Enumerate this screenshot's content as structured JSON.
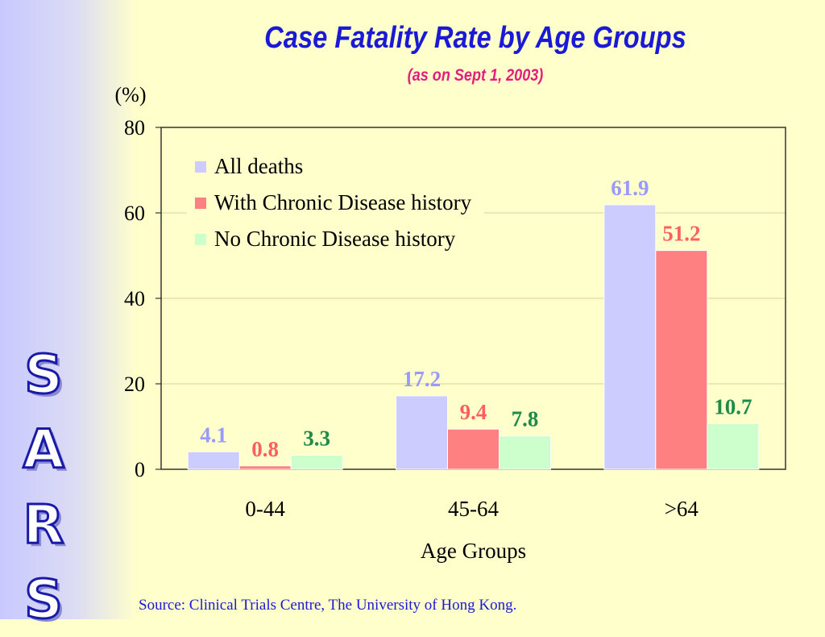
{
  "slide": {
    "side_text": [
      "S",
      "A",
      "R",
      "S"
    ],
    "source": "Source: Clinical Trials Centre, The University of Hong Kong."
  },
  "chart_data": {
    "type": "bar",
    "title": "Case Fatality Rate by Age Groups",
    "subtitle": "(as on Sept 1, 2003)",
    "ylabel": "(%)",
    "xlabel": "Age Groups",
    "ylim": [
      0,
      80
    ],
    "yticks": [
      0,
      20,
      40,
      60,
      80
    ],
    "grid": true,
    "legend_position": "top-left",
    "categories": [
      "0-44",
      "45-64",
      ">64"
    ],
    "series": [
      {
        "name": "All deaths",
        "values": [
          4.1,
          17.2,
          61.9
        ],
        "color": "#ccccff",
        "label_color": "#9999ff"
      },
      {
        "name": "With Chronic Disease history",
        "values": [
          0.8,
          9.4,
          51.2
        ],
        "color": "#ff8080",
        "label_color": "#ff5f5f"
      },
      {
        "name": "No Chronic Disease history",
        "values": [
          3.3,
          7.8,
          10.7
        ],
        "color": "#ccffcc",
        "label_color": "#1f8a4a"
      }
    ],
    "colors": {
      "gridline": "#e8d8a0",
      "axis": "#333333"
    }
  }
}
